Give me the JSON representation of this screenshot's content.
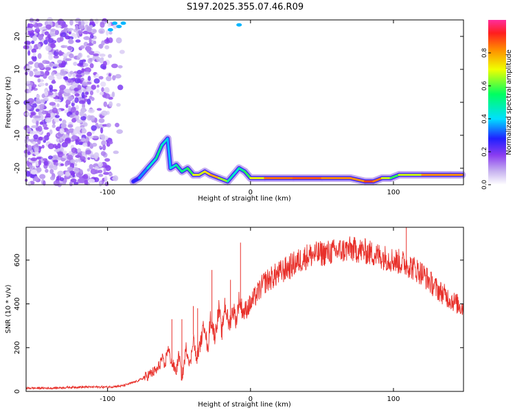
{
  "title": "S197.2025.355.07.46.R09",
  "colors": {
    "snr_line": "#e8302a",
    "colormap": [
      "#ffffff",
      "#c8b4f0",
      "#8a3cf0",
      "#2020ff",
      "#00e0ff",
      "#00ff60",
      "#f0ff00",
      "#ff8c00",
      "#ff1e1e",
      "#ff2d9b"
    ]
  },
  "chart_data": [
    {
      "type": "heatmap",
      "name": "spectrogram",
      "xlabel": "Height of straight line (km)",
      "ylabel": "Frequency (Hz)",
      "xlim": [
        -157,
        149
      ],
      "ylim": [
        -25,
        25
      ],
      "x_ticks": [
        -100,
        0,
        100
      ],
      "x_tick_labels": [
        "-100",
        "0",
        "100"
      ],
      "y_ticks": [
        -20,
        -10,
        0,
        10,
        20
      ],
      "y_tick_labels": [
        "-20",
        "-10",
        "0",
        "10",
        "20"
      ],
      "noise_region": {
        "x_from": -157,
        "x_to": -88,
        "y_from": -25,
        "y_to": 25,
        "amplitude": 0.15
      },
      "ridge": {
        "x": [
          -82,
          -78,
          -72,
          -66,
          -62,
          -58,
          -56,
          -52,
          -48,
          -44,
          -40,
          -36,
          -32,
          -28,
          -22,
          -16,
          -12,
          -8,
          -4,
          0,
          10,
          30,
          50,
          70,
          80,
          86,
          92,
          98,
          104,
          120,
          140,
          148
        ],
        "y": [
          -24,
          -23,
          -20,
          -17,
          -13,
          -11,
          -20,
          -19,
          -21,
          -20,
          -22,
          -22,
          -21,
          -22,
          -23,
          -24,
          -22,
          -20,
          -21,
          -23,
          -23,
          -23,
          -23,
          -23,
          -24,
          -24,
          -23,
          -23,
          -22,
          -22,
          -22,
          -22
        ],
        "amplitude": [
          0.3,
          0.35,
          0.45,
          0.5,
          0.55,
          0.4,
          0.45,
          0.5,
          0.55,
          0.5,
          0.65,
          0.7,
          0.6,
          0.8,
          0.7,
          0.55,
          0.45,
          0.5,
          0.55,
          0.6,
          0.75,
          0.85,
          0.8,
          0.75,
          0.8,
          0.9,
          0.7,
          0.6,
          0.55,
          0.75,
          0.8,
          0.75
        ]
      },
      "colorbar": {
        "label": "Normalized spectral amplitude",
        "range": [
          0,
          1
        ],
        "ticks": [
          0.0,
          0.2,
          0.4,
          0.6,
          0.8
        ],
        "tick_labels": [
          "0.0",
          "0.2",
          "0.4",
          "0.6",
          "0.8"
        ]
      }
    },
    {
      "type": "line",
      "name": "snr",
      "xlabel": "Height of straight line (km)",
      "ylabel": "SNR (10 * v/v)",
      "xlim": [
        -157,
        149
      ],
      "ylim": [
        0,
        750
      ],
      "x_ticks": [
        -100,
        0,
        100
      ],
      "x_tick_labels": [
        "-100",
        "0",
        "100"
      ],
      "y_ticks": [
        0,
        200,
        400,
        600
      ],
      "y_tick_labels": [
        "0",
        "200",
        "400",
        "600"
      ],
      "series": [
        {
          "name": "SNR",
          "x": [
            -157,
            -140,
            -120,
            -100,
            -90,
            -85,
            -80,
            -75,
            -70,
            -65,
            -62,
            -60,
            -58,
            -55,
            -52,
            -50,
            -48,
            -45,
            -42,
            -40,
            -38,
            -35,
            -32,
            -30,
            -28,
            -25,
            -22,
            -20,
            -18,
            -15,
            -12,
            -10,
            -8,
            -5,
            0,
            5,
            10,
            15,
            20,
            30,
            40,
            50,
            60,
            70,
            80,
            90,
            100,
            110,
            120,
            130,
            140,
            149
          ],
          "y": [
            15,
            15,
            20,
            20,
            25,
            35,
            45,
            60,
            80,
            100,
            150,
            110,
            200,
            130,
            90,
            170,
            50,
            200,
            120,
            260,
            140,
            220,
            320,
            180,
            340,
            250,
            380,
            260,
            400,
            300,
            380,
            320,
            420,
            360,
            400,
            450,
            500,
            520,
            540,
            580,
            620,
            630,
            640,
            650,
            640,
            620,
            600,
            580,
            540,
            470,
            420,
            380
          ]
        }
      ],
      "spikes": [
        {
          "x": -55,
          "y": 330
        },
        {
          "x": -48,
          "y": 330
        },
        {
          "x": -40,
          "y": 390
        },
        {
          "x": -37,
          "y": 380
        },
        {
          "x": -27,
          "y": 555
        },
        {
          "x": -14,
          "y": 510
        },
        {
          "x": -7,
          "y": 680
        },
        {
          "x": 109,
          "y": 750
        }
      ]
    }
  ]
}
